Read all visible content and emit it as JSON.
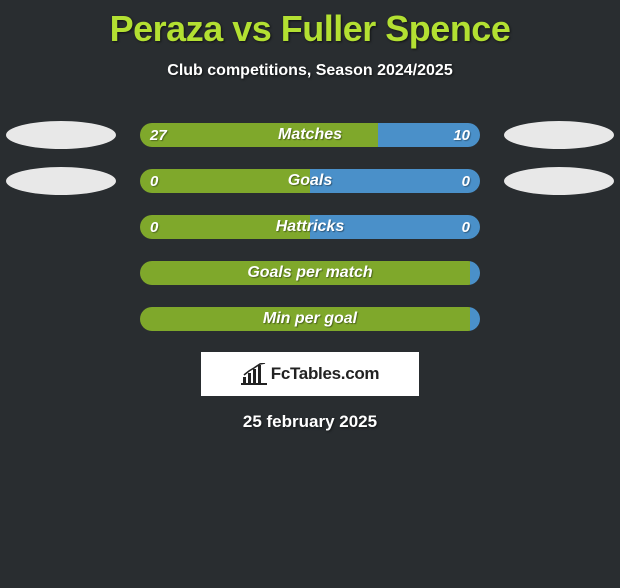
{
  "title": "Peraza vs Fuller Spence",
  "subtitle": "Club competitions, Season 2024/2025",
  "colors": {
    "background": "#292d30",
    "accent": "#b3e032",
    "bar_left": "#7fa82b",
    "bar_right": "#4a90c9",
    "oval": "#e8e8e8",
    "text": "#ffffff"
  },
  "stats": [
    {
      "label": "Matches",
      "left_value": "27",
      "right_value": "10",
      "left_pct": 70,
      "right_pct": 30,
      "show_left_oval": true,
      "show_right_oval": true
    },
    {
      "label": "Goals",
      "left_value": "0",
      "right_value": "0",
      "left_pct": 50,
      "right_pct": 50,
      "show_left_oval": true,
      "show_right_oval": true
    },
    {
      "label": "Hattricks",
      "left_value": "0",
      "right_value": "0",
      "left_pct": 50,
      "right_pct": 50,
      "show_left_oval": false,
      "show_right_oval": false
    },
    {
      "label": "Goals per match",
      "left_value": "",
      "right_value": "",
      "left_pct": 100,
      "right_pct": 0,
      "show_left_oval": false,
      "show_right_oval": false
    },
    {
      "label": "Min per goal",
      "left_value": "",
      "right_value": "",
      "left_pct": 100,
      "right_pct": 0,
      "show_left_oval": false,
      "show_right_oval": false
    }
  ],
  "brand": "FcTables.com",
  "date": "25 february 2025"
}
